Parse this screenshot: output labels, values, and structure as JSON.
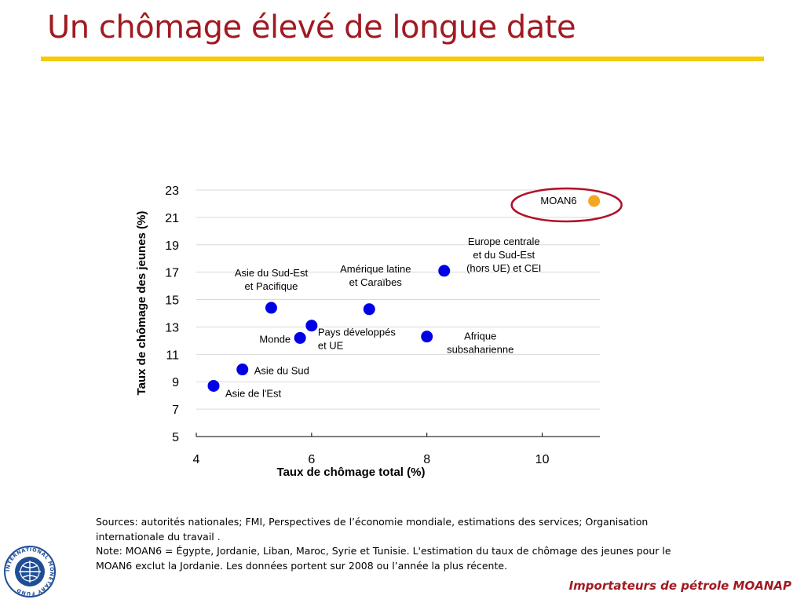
{
  "slide": {
    "title": "Un chômage élevé de longue date",
    "footer": "Importateurs de pétrole MOANAP",
    "notes": [
      "Sources: autorités nationales; FMI, Perspectives de l’économie mondiale, estimations des services; Organisation internationale du travail .",
      "Note: MOAN6 = Égypte, Jordanie, Liban, Maroc, Syrie et Tunisie. L'estimation du taux de chômage des jeunes pour le MOAN6 exclut la Jordanie. Les données portent sur 2008 ou l’année la plus récente."
    ],
    "logo_text": "INTERNATIONAL MONETARY FUND"
  },
  "chart_data": {
    "type": "scatter",
    "xlabel": "Taux de chômage total (%)",
    "ylabel": "Taux de chômage des jeunes (%)",
    "xlim": [
      4,
      11
    ],
    "ylim": [
      5,
      23
    ],
    "xticks": [
      4,
      6,
      8,
      10
    ],
    "yticks": [
      5,
      7,
      9,
      11,
      13,
      15,
      17,
      19,
      21,
      23
    ],
    "grid": "horizontal",
    "colors": {
      "default": "#0000e6",
      "highlight": "#f5a623",
      "circle": "#b0102a"
    },
    "points": [
      {
        "label": "Asie de l'Est",
        "x": 4.3,
        "y": 8.7
      },
      {
        "label": "Asie du Sud",
        "x": 4.8,
        "y": 9.9
      },
      {
        "label": "Asie du Sud-Est\net Pacifique",
        "x": 5.3,
        "y": 14.4
      },
      {
        "label": "Monde",
        "x": 5.8,
        "y": 12.2
      },
      {
        "label": "Pays développés\net UE",
        "x": 6.0,
        "y": 13.1
      },
      {
        "label": "Amérique latine\net Caraïbes",
        "x": 7.0,
        "y": 14.3
      },
      {
        "label": "Afrique\nsubsaharienne",
        "x": 8.0,
        "y": 12.3
      },
      {
        "label": "Europe centrale\net du Sud-Est\n(hors UE) et CEI",
        "x": 8.3,
        "y": 17.1
      },
      {
        "label": "MOAN6",
        "x": 10.9,
        "y": 22.2,
        "highlight": true
      }
    ]
  }
}
